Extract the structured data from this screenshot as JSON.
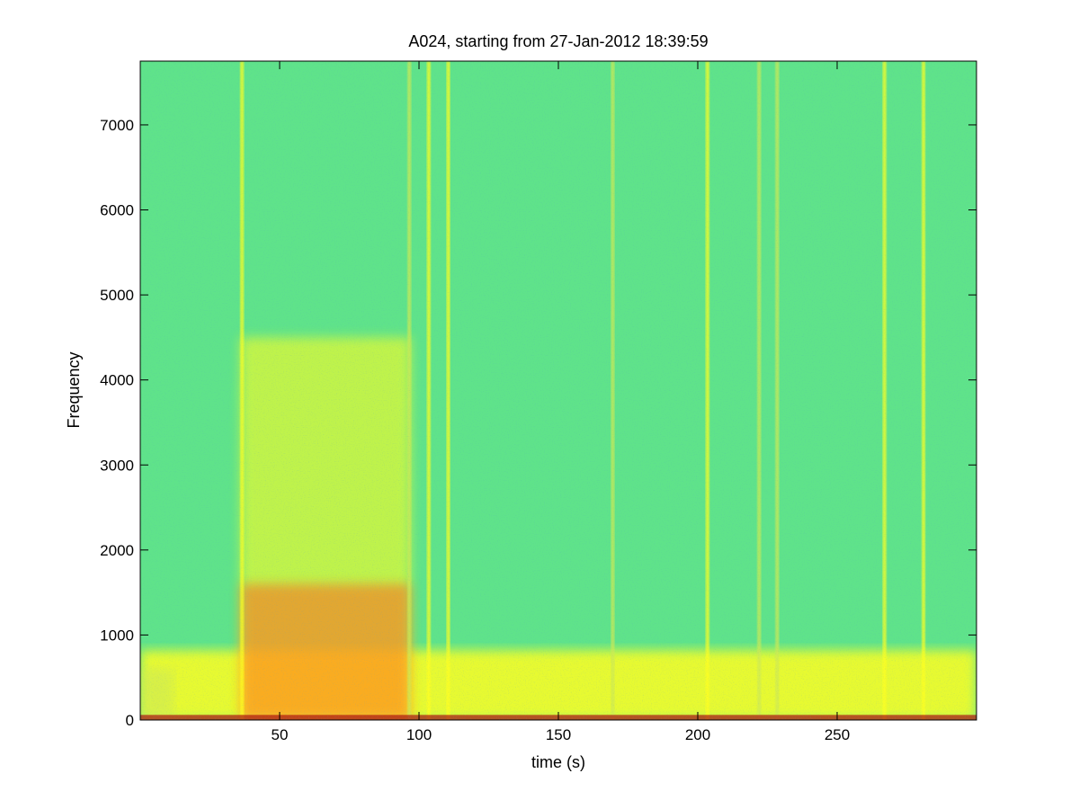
{
  "chart_data": {
    "type": "heatmap",
    "title": "A024, starting from 27-Jan-2012 18:39:59",
    "xlabel": "time (s)",
    "ylabel": "Frequency",
    "xlim": [
      0,
      300
    ],
    "ylim": [
      0,
      7750
    ],
    "x_ticks": [
      50,
      100,
      150,
      200,
      250
    ],
    "y_ticks": [
      0,
      1000,
      2000,
      3000,
      4000,
      5000,
      6000,
      7000
    ],
    "grid": false,
    "colormap": {
      "background": "#5fe38a",
      "mid": "#cfea55",
      "high": "#ffff20",
      "peak": "#ff6a1a"
    },
    "features": [
      {
        "kind": "low_band",
        "t0": 0,
        "t1": 300,
        "f0": 0,
        "f1": 820,
        "level": "high"
      },
      {
        "kind": "region",
        "t0": 36,
        "t1": 97,
        "f0": 0,
        "f1": 4500,
        "level": "high"
      },
      {
        "kind": "region",
        "t0": 36,
        "t1": 97,
        "f0": 0,
        "f1": 1600,
        "level": "peak"
      },
      {
        "kind": "region",
        "t0": 0,
        "t1": 12,
        "f0": 0,
        "f1": 600,
        "level": "mid"
      },
      {
        "kind": "vertical_line",
        "t": 36.5,
        "f1": 7750,
        "level": "high"
      },
      {
        "kind": "vertical_line",
        "t": 96.5,
        "f1": 7750,
        "level": "mid"
      },
      {
        "kind": "vertical_line",
        "t": 103.5,
        "f1": 7750,
        "level": "high"
      },
      {
        "kind": "vertical_line",
        "t": 110.5,
        "f1": 7750,
        "level": "high"
      },
      {
        "kind": "vertical_line",
        "t": 169.5,
        "f1": 7750,
        "level": "mid"
      },
      {
        "kind": "vertical_line",
        "t": 203.5,
        "f1": 7750,
        "level": "high"
      },
      {
        "kind": "vertical_line",
        "t": 222.0,
        "f1": 7750,
        "level": "mid"
      },
      {
        "kind": "vertical_line",
        "t": 228.5,
        "f1": 7750,
        "level": "mid"
      },
      {
        "kind": "vertical_line",
        "t": 267.0,
        "f1": 7750,
        "level": "high"
      },
      {
        "kind": "vertical_line",
        "t": 281.0,
        "f1": 7750,
        "level": "high"
      }
    ]
  }
}
